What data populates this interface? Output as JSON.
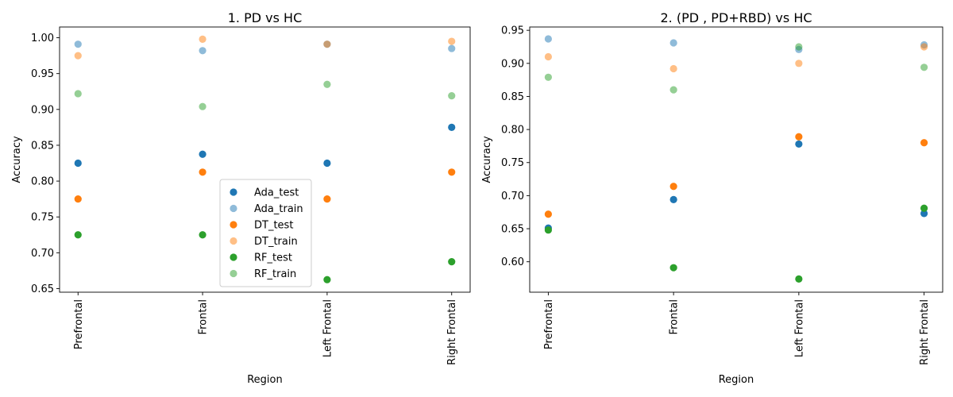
{
  "chart_data": [
    {
      "type": "scatter",
      "title": "1. PD vs HC",
      "xlabel": "Region",
      "ylabel": "Accuracy",
      "categories": [
        "Prefrontal",
        "Frontal",
        "Left Frontal",
        "Right Frontal"
      ],
      "ylim": [
        0.645,
        1.015
      ],
      "yticks": [
        "0.65",
        "0.70",
        "0.75",
        "0.80",
        "0.85",
        "0.90",
        "0.95",
        "1.00"
      ],
      "legend": true,
      "legend_position": "center",
      "series": [
        {
          "name": "Ada_test",
          "color": "#1f77b4",
          "alpha": 1.0,
          "values": [
            0.825,
            0.8375,
            0.825,
            0.875
          ]
        },
        {
          "name": "Ada_train",
          "color": "#1f77b4",
          "alpha": 0.5,
          "values": [
            0.991,
            0.982,
            0.991,
            0.985
          ]
        },
        {
          "name": "DT_test",
          "color": "#ff7f0e",
          "alpha": 1.0,
          "values": [
            0.775,
            0.8125,
            0.775,
            0.8125
          ]
        },
        {
          "name": "DT_train",
          "color": "#ff7f0e",
          "alpha": 0.5,
          "values": [
            0.975,
            0.998,
            0.991,
            0.995
          ]
        },
        {
          "name": "RF_test",
          "color": "#2ca02c",
          "alpha": 1.0,
          "values": [
            0.725,
            0.725,
            0.6625,
            0.6875
          ]
        },
        {
          "name": "RF_train",
          "color": "#2ca02c",
          "alpha": 0.5,
          "values": [
            0.922,
            0.904,
            0.935,
            0.919
          ]
        }
      ]
    },
    {
      "type": "scatter",
      "title": "2. (PD , PD+RBD) vs HC",
      "xlabel": "Region",
      "ylabel": "Accuracy",
      "categories": [
        "Prefrontal",
        "Frontal",
        "Left Frontal",
        "Right Frontal"
      ],
      "ylim": [
        0.554,
        0.955
      ],
      "yticks": [
        "0.60",
        "0.65",
        "0.70",
        "0.75",
        "0.80",
        "0.85",
        "0.90",
        "0.95"
      ],
      "legend": false,
      "series": [
        {
          "name": "Ada_test",
          "color": "#1f77b4",
          "alpha": 1.0,
          "values": [
            0.651,
            0.694,
            0.778,
            0.673
          ]
        },
        {
          "name": "Ada_train",
          "color": "#1f77b4",
          "alpha": 0.5,
          "values": [
            0.937,
            0.931,
            0.921,
            0.928
          ]
        },
        {
          "name": "DT_test",
          "color": "#ff7f0e",
          "alpha": 1.0,
          "values": [
            0.672,
            0.714,
            0.789,
            0.78
          ]
        },
        {
          "name": "DT_train",
          "color": "#ff7f0e",
          "alpha": 0.5,
          "values": [
            0.91,
            0.892,
            0.9,
            0.925
          ]
        },
        {
          "name": "RF_test",
          "color": "#2ca02c",
          "alpha": 1.0,
          "values": [
            0.648,
            0.591,
            0.574,
            0.681
          ]
        },
        {
          "name": "RF_train",
          "color": "#2ca02c",
          "alpha": 0.5,
          "values": [
            0.879,
            0.86,
            0.925,
            0.894
          ]
        }
      ]
    }
  ]
}
